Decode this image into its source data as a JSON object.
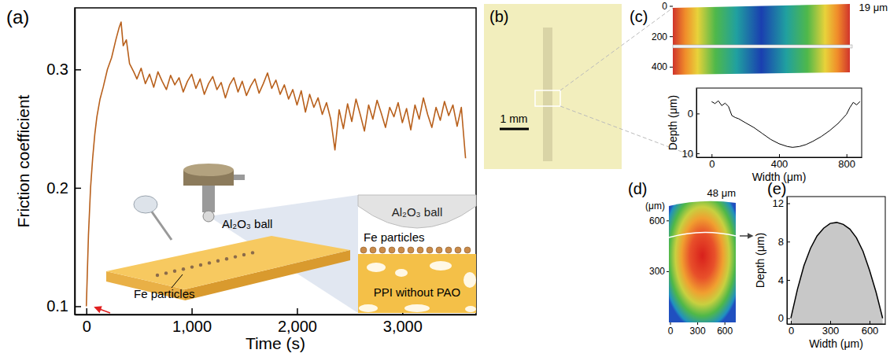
{
  "chart_data": [
    {
      "type": "line",
      "panel": "(a)",
      "x_label": "Time (s)",
      "y_label": "Friction coefficient",
      "color": "#b8601c",
      "xlim": [
        -110,
        3700
      ],
      "xticks": [
        0,
        {
          "value": 1000,
          "label": "1,000"
        },
        {
          "value": 2000,
          "label": "2,000"
        },
        {
          "value": 3000,
          "label": "3,000"
        }
      ],
      "ylim": [
        0.093,
        0.352
      ],
      "yticks": [
        0.1,
        0.2,
        0.3
      ],
      "annotations": [
        "Al₂O₃ ball",
        "Fe particles",
        "Al₂O₃ ball",
        "Fe particles",
        "PPI without PAO"
      ],
      "x": [
        0,
        10,
        20,
        40,
        60,
        80,
        100,
        130,
        160,
        200,
        240,
        280,
        310,
        330,
        350,
        380,
        410,
        450,
        480,
        520,
        560,
        600,
        640,
        680,
        720,
        760,
        800,
        840,
        880,
        920,
        960,
        1000,
        1040,
        1080,
        1120,
        1160,
        1200,
        1240,
        1280,
        1320,
        1360,
        1400,
        1440,
        1480,
        1520,
        1560,
        1600,
        1640,
        1680,
        1720,
        1760,
        1800,
        1840,
        1880,
        1920,
        1960,
        2000,
        2040,
        2080,
        2120,
        2160,
        2200,
        2240,
        2280,
        2320,
        2360,
        2400,
        2440,
        2480,
        2520,
        2560,
        2600,
        2640,
        2680,
        2720,
        2760,
        2800,
        2840,
        2880,
        2920,
        2960,
        3000,
        3040,
        3080,
        3120,
        3160,
        3200,
        3240,
        3280,
        3320,
        3360,
        3400,
        3440,
        3480,
        3520,
        3560,
        3600
      ],
      "values": [
        0.1,
        0.13,
        0.16,
        0.2,
        0.225,
        0.245,
        0.26,
        0.275,
        0.285,
        0.3,
        0.31,
        0.325,
        0.335,
        0.34,
        0.32,
        0.325,
        0.305,
        0.298,
        0.292,
        0.301,
        0.288,
        0.296,
        0.285,
        0.298,
        0.29,
        0.283,
        0.295,
        0.287,
        0.293,
        0.281,
        0.29,
        0.296,
        0.284,
        0.292,
        0.279,
        0.288,
        0.294,
        0.283,
        0.289,
        0.276,
        0.287,
        0.293,
        0.281,
        0.29,
        0.278,
        0.286,
        0.292,
        0.28,
        0.288,
        0.297,
        0.284,
        0.291,
        0.279,
        0.287,
        0.275,
        0.283,
        0.27,
        0.282,
        0.264,
        0.279,
        0.268,
        0.276,
        0.262,
        0.272,
        0.258,
        0.232,
        0.266,
        0.25,
        0.271,
        0.256,
        0.275,
        0.262,
        0.248,
        0.27,
        0.258,
        0.274,
        0.263,
        0.251,
        0.268,
        0.26,
        0.272,
        0.255,
        0.267,
        0.249,
        0.27,
        0.258,
        0.276,
        0.262,
        0.251,
        0.268,
        0.257,
        0.273,
        0.261,
        0.27,
        0.252,
        0.268,
        0.225
      ]
    },
    {
      "type": "line",
      "panel": "(c)",
      "x_label": "Width (μm)",
      "y_label": "Depth (μm)",
      "color": "#000000",
      "xlim": [
        -90,
        890
      ],
      "xticks": [
        0,
        400,
        800
      ],
      "ylim": [
        11,
        -6.4
      ],
      "yticks": [
        0,
        10
      ],
      "x": [
        0,
        20,
        40,
        60,
        80,
        100,
        120,
        140,
        160,
        200,
        250,
        300,
        350,
        400,
        450,
        480,
        520,
        560,
        600,
        650,
        700,
        750,
        800,
        820,
        840,
        860,
        880
      ],
      "values": [
        -3,
        -2.5,
        -3.2,
        -2,
        -2.6,
        -1.8,
        0.5,
        1,
        1.3,
        2.3,
        3.5,
        5,
        6.5,
        7.6,
        8.3,
        8.5,
        8.3,
        7.8,
        7,
        5.8,
        4.3,
        2.5,
        0.2,
        -1.5,
        -2.8,
        -2.2,
        -3
      ]
    },
    {
      "type": "area",
      "panel": "(e)",
      "x_label": "Width (μm)",
      "y_label": "Depth (μm)",
      "color": "#c8c8c8",
      "xlim": [
        -30,
        720
      ],
      "xticks": [
        0,
        300,
        600
      ],
      "ylim": [
        -0.6,
        12.7
      ],
      "yticks": [
        0,
        4,
        8,
        12
      ],
      "x": [
        0,
        50,
        100,
        150,
        200,
        250,
        300,
        350,
        400,
        450,
        500,
        550,
        600,
        650,
        700
      ],
      "values": [
        0,
        3,
        5.5,
        7.3,
        8.6,
        9.4,
        9.9,
        10,
        9.8,
        9.3,
        8.4,
        7,
        5,
        2.7,
        0
      ]
    }
  ],
  "images": [
    {
      "panel": "(b)",
      "scale_bar": "1 mm"
    },
    {
      "max_label": "19 μm",
      "ylim": [
        0,
        450
      ],
      "yticks": [
        0,
        200,
        400
      ]
    },
    {
      "panel": "(d)",
      "axis_label": "(μm)",
      "max_label": "48 μm",
      "xlim": [
        0,
        720
      ],
      "ylim": [
        0,
        720
      ],
      "xticks": [
        0,
        300,
        600
      ],
      "yticks": [
        300,
        600
      ]
    }
  ]
}
